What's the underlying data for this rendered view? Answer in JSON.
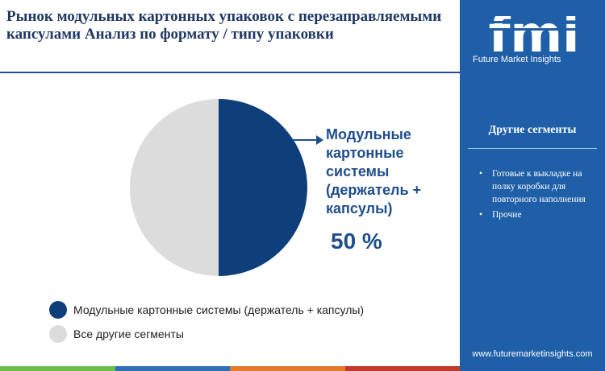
{
  "title": "Рынок модульных картонных упаковок с перезаправляемыми капсулами Анализ по формату / типу упаковки",
  "callout": {
    "label": "Модульные картонные системы (держатель + капсулы)",
    "value": "50 %"
  },
  "chart_data": {
    "type": "pie",
    "title": "Рынок модульных картонных упаковок с перезаправляемыми капсулами Анализ по формату / типу упаковки",
    "categories": [
      "Модульные картонные системы (держатель + капсулы)",
      "Все другие сегменты"
    ],
    "values": [
      50,
      50
    ],
    "colors": [
      "#0f3f7a",
      "#dcdcdc"
    ],
    "legend_placement": "bottom-left"
  },
  "legend": [
    {
      "label": "Модульные картонные системы (держатель + капсулы)",
      "color": "#0f3f7a"
    },
    {
      "label": "Все другие сегменты",
      "color": "#dcdcdc"
    }
  ],
  "sidebar": {
    "logo_text": "fmi",
    "logo_subtitle": "Future Market Insights",
    "heading": "Другие сегменты",
    "items": [
      "Готовые к выкладке на полку коробки для повторного наполнения",
      "Прочие"
    ],
    "footer_url": "www.futuremarketinsights.com"
  },
  "colors": {
    "accent": "#1f4e8c",
    "sidebar_bg": "#1f5fa8",
    "bottom_bar": [
      "#6dbf4b",
      "#2f6fb5",
      "#e57a2c",
      "#c0392b"
    ]
  }
}
